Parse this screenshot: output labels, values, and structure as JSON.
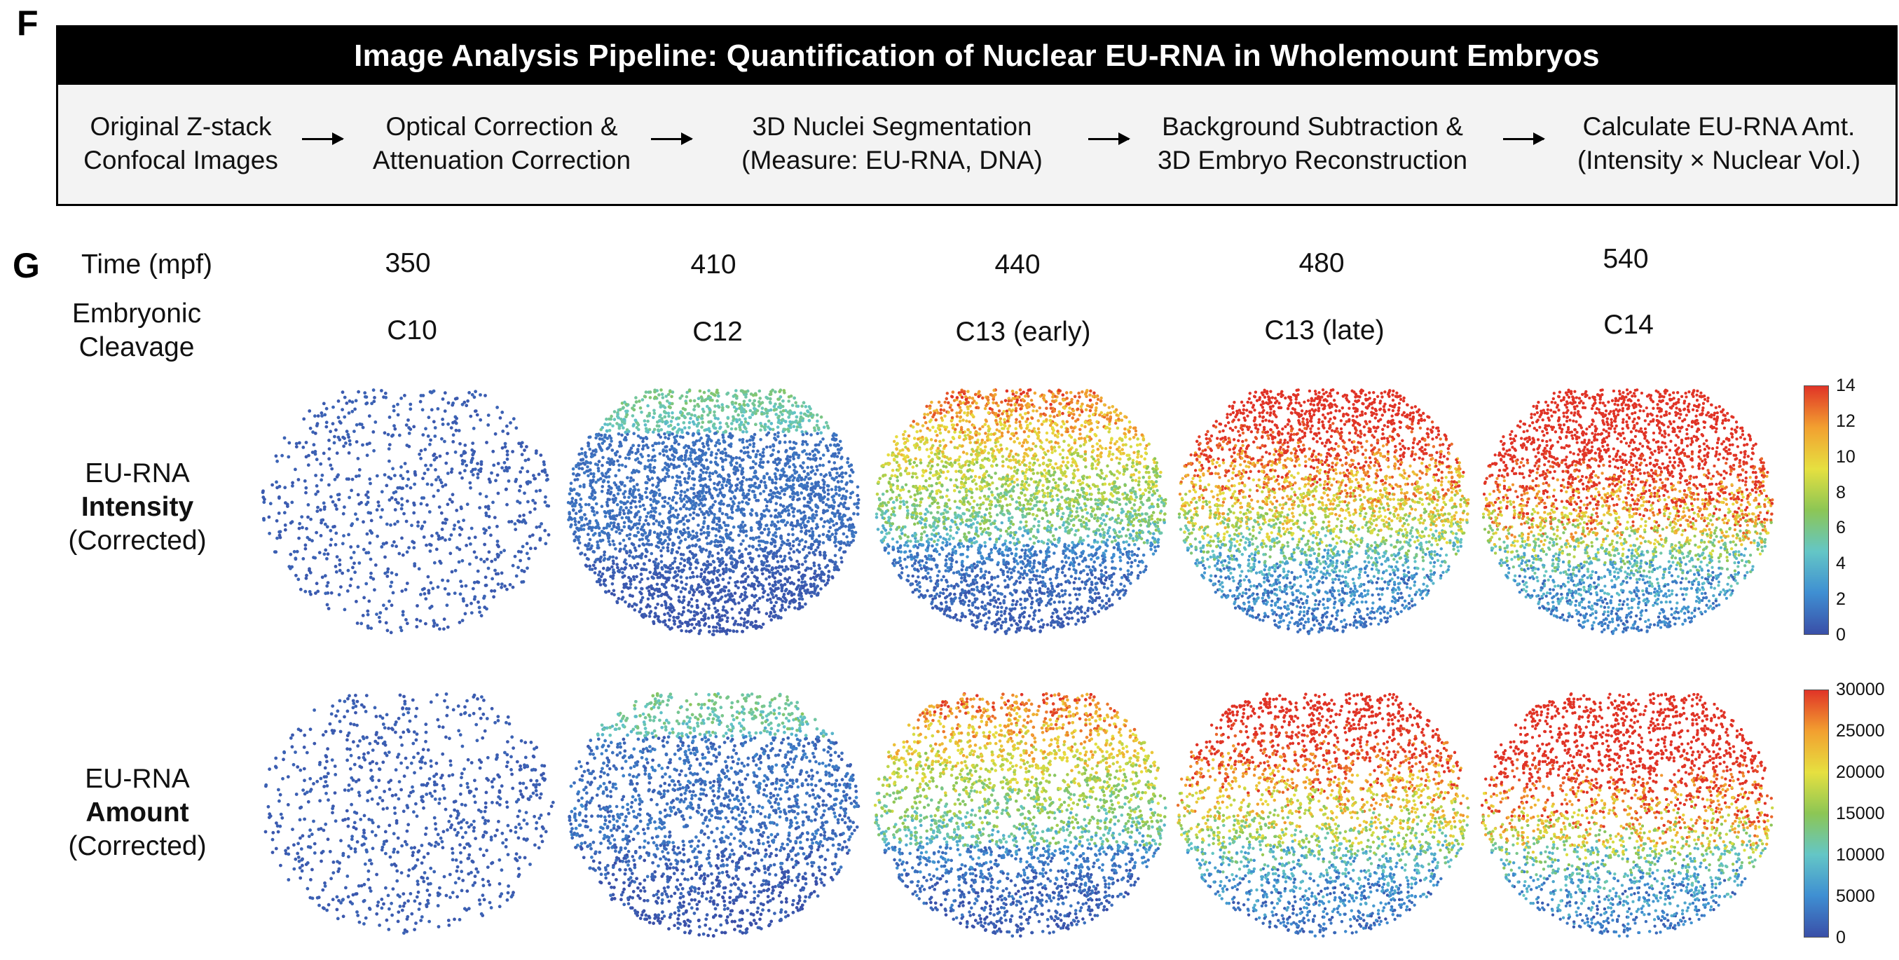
{
  "panel_f": {
    "letter": "F",
    "title": "Image Analysis Pipeline: Quantification of Nuclear EU-RNA in Wholemount Embryos",
    "steps": [
      {
        "line1": "Original Z-stack",
        "line2": "Confocal Images"
      },
      {
        "line1": "Optical Correction &",
        "line2": "Attenuation Correction"
      },
      {
        "line1": "3D Nuclei Segmentation",
        "line2": "(Measure: EU-RNA, DNA)"
      },
      {
        "line1": "Background Subtraction &",
        "line2": "3D Embryo Reconstruction"
      },
      {
        "line1": "Calculate EU-RNA Amt.",
        "line2": "(Intensity × Nuclear Vol.)"
      }
    ]
  },
  "panel_g": {
    "letter": "G",
    "time_label": "Time (mpf)",
    "cleavage_label_line1": "Embryonic",
    "cleavage_label_line2": "Cleavage",
    "times": [
      "350",
      "410",
      "440",
      "480",
      "540"
    ],
    "cleavages": [
      "C10",
      "C12",
      "C13 (early)",
      "C13 (late)",
      "C14"
    ],
    "rows": [
      {
        "line1": "EU-RNA",
        "bold": "Intensity",
        "line3": "(Corrected)"
      },
      {
        "line1": "EU-RNA",
        "bold": "Amount",
        "line3": "(Corrected)"
      }
    ],
    "intensity_colorbar_ticks": [
      "14",
      "12",
      "10",
      "8",
      "6",
      "4",
      "2",
      "0"
    ],
    "amount_colorbar_ticks": [
      "30000",
      "25000",
      "20000",
      "15000",
      "10000",
      "5000",
      "0"
    ],
    "colormap": [
      "#3a4fa8",
      "#3f8fd2",
      "#64c6c6",
      "#8cc655",
      "#e6e040",
      "#f2a030",
      "#e03427"
    ]
  }
}
